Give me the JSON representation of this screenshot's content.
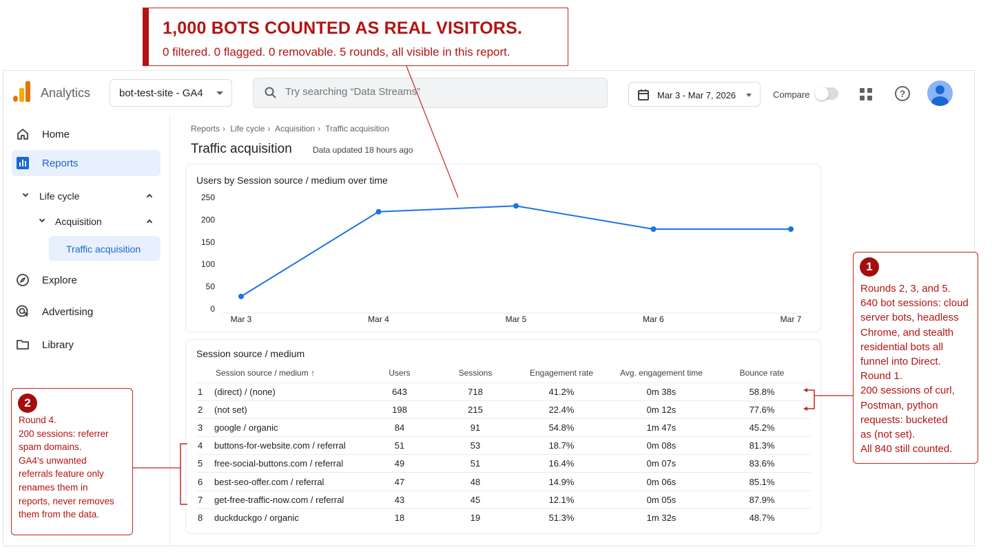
{
  "header": {
    "brand": "Analytics",
    "property": "bot-test-site - GA4",
    "search_placeholder": "Try searching “Data Streams”",
    "date_range": "Mar 3 - Mar 7, 2026",
    "compare_label": "Compare"
  },
  "sidebar": {
    "home": "Home",
    "reports": "Reports",
    "lifecycle": "Life cycle",
    "acquisition": "Acquisition",
    "traffic_acquisition": "Traffic acquisition",
    "explore": "Explore",
    "advertising": "Advertising",
    "library": "Library"
  },
  "breadcrumb": [
    "Reports",
    "Life cycle",
    "Acquisition",
    "Traffic acquisition"
  ],
  "page": {
    "title": "Traffic acquisition",
    "updated": "Data updated 18 hours ago"
  },
  "chart_data": {
    "type": "line",
    "title": "Users by Session source / medium over time",
    "categories": [
      "Mar 3",
      "Mar 4",
      "Mar 5",
      "Mar 6",
      "Mar 7"
    ],
    "series": [
      {
        "values": [
          28,
          218,
          231,
          179,
          179
        ]
      }
    ],
    "yticks": [
      0,
      50,
      100,
      150,
      200,
      250
    ],
    "ylim": [
      0,
      250
    ],
    "grid": false,
    "color": "#1a73e8"
  },
  "table": {
    "title": "Session source / medium",
    "columns": [
      "Session source / medium",
      "Users",
      "Sessions",
      "Engagement rate",
      "Avg. engagement time",
      "Bounce rate"
    ],
    "sort_arrow": "↑",
    "rows": [
      {
        "n": "1",
        "source": "(direct) / (none)",
        "users": "643",
        "sessions": "718",
        "eng": "41.2%",
        "time": "0m 38s",
        "bounce": "58.8%"
      },
      {
        "n": "2",
        "source": "(not set)",
        "users": "198",
        "sessions": "215",
        "eng": "22.4%",
        "time": "0m 12s",
        "bounce": "77.6%"
      },
      {
        "n": "3",
        "source": "google / organic",
        "users": "84",
        "sessions": "91",
        "eng": "54.8%",
        "time": "1m 47s",
        "bounce": "45.2%"
      },
      {
        "n": "4",
        "source": "buttons-for-website.com / referral",
        "users": "51",
        "sessions": "53",
        "eng": "18.7%",
        "time": "0m 08s",
        "bounce": "81.3%"
      },
      {
        "n": "5",
        "source": "free-social-buttons.com / referral",
        "users": "49",
        "sessions": "51",
        "eng": "16.4%",
        "time": "0m 07s",
        "bounce": "83.6%"
      },
      {
        "n": "6",
        "source": "best-seo-offer.com / referral",
        "users": "47",
        "sessions": "48",
        "eng": "14.9%",
        "time": "0m 06s",
        "bounce": "85.1%"
      },
      {
        "n": "7",
        "source": "get-free-traffic-now.com / referral",
        "users": "43",
        "sessions": "45",
        "eng": "12.1%",
        "time": "0m 05s",
        "bounce": "87.9%"
      },
      {
        "n": "8",
        "source": "duckduckgo / organic",
        "users": "18",
        "sessions": "19",
        "eng": "51.3%",
        "time": "1m 32s",
        "bounce": "48.7%"
      }
    ]
  },
  "annotations": {
    "banner_title": "1,000 BOTS COUNTED AS REAL VISITORS.",
    "banner_sub": "0 filtered. 0 flagged. 0 removable. 5 rounds, all visible in this report.",
    "note1_badge": "1",
    "note1_text": "Rounds 2, 3, and 5.\n640 bot sessions: cloud\nserver bots, headless\nChrome, and stealth\nresidential bots all\nfunnel into Direct.\nRound 1.\n200 sessions of curl,\nPostman, python\nrequests: bucketed\nas (not set).\nAll 840 still counted.",
    "note2_badge": "2",
    "note2_text": "Round 4.\n200 sessions: referrer\nspam domains.\nGA4's unwanted\nreferrals feature only\nrenames them in\nreports, never removes\nthem from the data.",
    "accent_color": "#b31412"
  }
}
